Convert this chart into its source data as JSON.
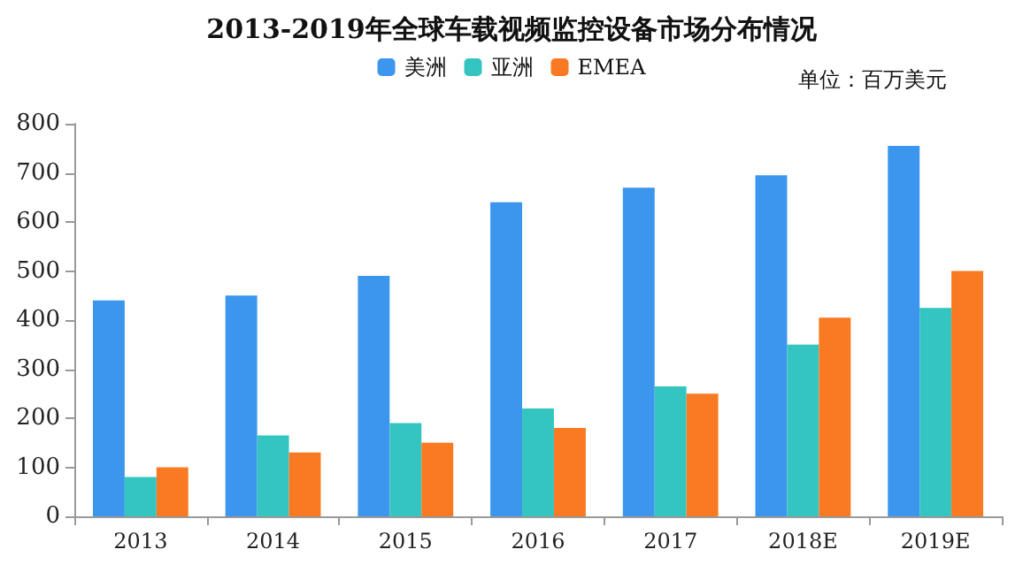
{
  "chart_data": {
    "type": "bar",
    "title": "2013-2019年全球车载视频监控设备市场分布情况",
    "ylabel": "单位：百万美元",
    "categories": [
      "2013",
      "2014",
      "2015",
      "2016",
      "2017",
      "2018E",
      "2019E"
    ],
    "series": [
      {
        "name": "美洲",
        "color": "#3c96ee",
        "values": [
          440,
          450,
          490,
          640,
          670,
          695,
          755
        ]
      },
      {
        "name": "亚洲",
        "color": "#35c5c1",
        "values": [
          80,
          165,
          190,
          220,
          265,
          350,
          425
        ]
      },
      {
        "name": "EMEA",
        "color": "#f97a22",
        "values": [
          100,
          130,
          150,
          180,
          250,
          405,
          500
        ]
      }
    ],
    "ylim": [
      0,
      800
    ],
    "yticks": [
      0,
      100,
      200,
      300,
      400,
      500,
      600,
      700,
      800
    ],
    "grid": false,
    "legend": "top"
  }
}
